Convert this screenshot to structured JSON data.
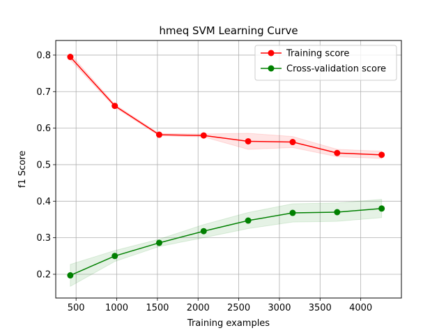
{
  "chart_data": {
    "type": "line",
    "title": "hmeq SVM Learning Curve",
    "xlabel": "Training examples",
    "ylabel": "f1 Score",
    "xlim": [
      250,
      4500
    ],
    "ylim": [
      0.135,
      0.84
    ],
    "xticks": [
      500,
      1000,
      1500,
      2000,
      2500,
      3000,
      3500,
      4000
    ],
    "yticks": [
      0.2,
      0.3,
      0.4,
      0.5,
      0.6,
      0.7,
      0.8
    ],
    "grid": true,
    "legend_position": "top-right",
    "x": [
      429,
      976,
      1522,
      2069,
      2616,
      3163,
      3710,
      4257
    ],
    "series": [
      {
        "name": "Training score",
        "color": "#ff0000",
        "values": [
          0.795,
          0.661,
          0.582,
          0.58,
          0.564,
          0.562,
          0.532,
          0.527
        ],
        "std": [
          0.008,
          0.004,
          0.003,
          0.004,
          0.022,
          0.015,
          0.01,
          0.01
        ]
      },
      {
        "name": "Cross-validation score",
        "color": "#008000",
        "values": [
          0.197,
          0.25,
          0.286,
          0.318,
          0.347,
          0.368,
          0.37,
          0.38
        ],
        "std": [
          0.03,
          0.015,
          0.01,
          0.018,
          0.022,
          0.025,
          0.025,
          0.025
        ]
      }
    ]
  }
}
